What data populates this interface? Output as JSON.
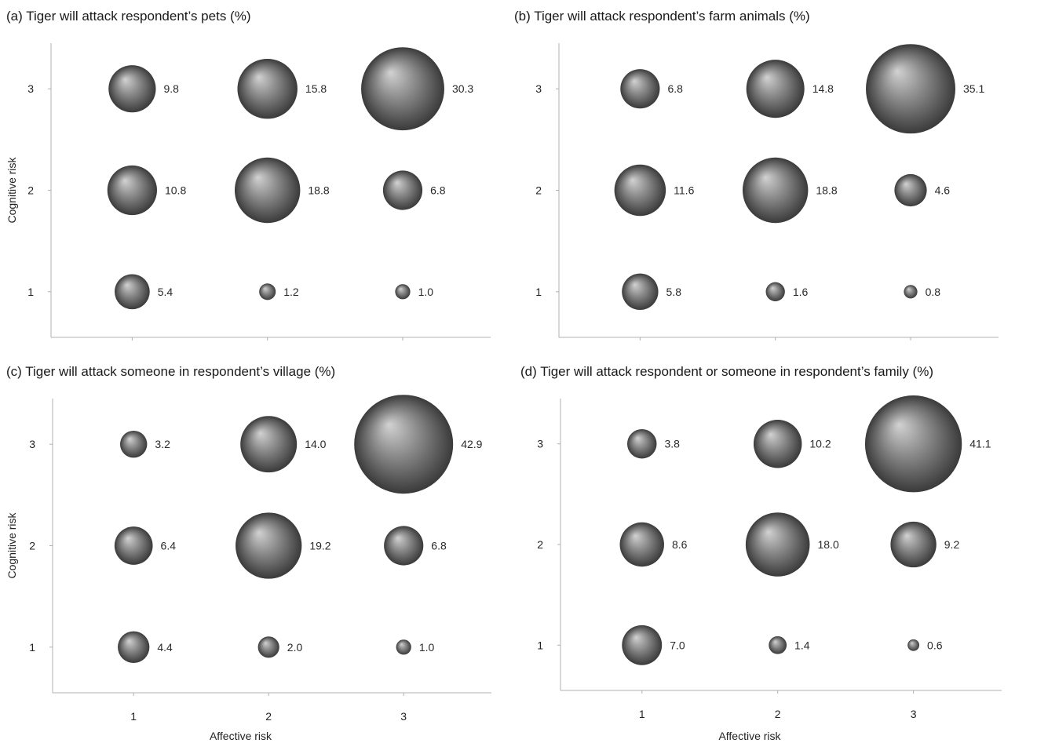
{
  "chart_data": [
    {
      "type": "bubble",
      "title": "(a)  Tiger will attack respondent’s pets (%)",
      "xlabel": "",
      "ylabel": "Cognitive risk",
      "x_ticks": [
        "1",
        "2",
        "3"
      ],
      "y_ticks": [
        "1",
        "2",
        "3"
      ],
      "xlim": [
        0.4,
        3.65
      ],
      "ylim": [
        0.55,
        3.45
      ],
      "points": [
        {
          "x": 1,
          "y": 3,
          "value": 9.8,
          "label": "9.8"
        },
        {
          "x": 2,
          "y": 3,
          "value": 15.8,
          "label": "15.8"
        },
        {
          "x": 3,
          "y": 3,
          "value": 30.3,
          "label": "30.3"
        },
        {
          "x": 1,
          "y": 2,
          "value": 10.8,
          "label": "10.8"
        },
        {
          "x": 2,
          "y": 2,
          "value": 18.8,
          "label": "18.8"
        },
        {
          "x": 3,
          "y": 2,
          "value": 6.8,
          "label": "6.8"
        },
        {
          "x": 1,
          "y": 1,
          "value": 5.4,
          "label": "5.4"
        },
        {
          "x": 2,
          "y": 1,
          "value": 1.2,
          "label": "1.2"
        },
        {
          "x": 3,
          "y": 1,
          "value": 1.0,
          "label": "1.0"
        }
      ]
    },
    {
      "type": "bubble",
      "title": "(b)  Tiger will attack respondent’s farm animals (%)",
      "xlabel": "",
      "ylabel": "",
      "x_ticks": [
        "1",
        "2",
        "3"
      ],
      "y_ticks": [
        "1",
        "2",
        "3"
      ],
      "xlim": [
        0.4,
        3.65
      ],
      "ylim": [
        0.55,
        3.45
      ],
      "points": [
        {
          "x": 1,
          "y": 3,
          "value": 6.8,
          "label": "6.8"
        },
        {
          "x": 2,
          "y": 3,
          "value": 14.8,
          "label": "14.8"
        },
        {
          "x": 3,
          "y": 3,
          "value": 35.1,
          "label": "35.1"
        },
        {
          "x": 1,
          "y": 2,
          "value": 11.6,
          "label": "11.6"
        },
        {
          "x": 2,
          "y": 2,
          "value": 18.8,
          "label": "18.8"
        },
        {
          "x": 3,
          "y": 2,
          "value": 4.6,
          "label": "4.6"
        },
        {
          "x": 1,
          "y": 1,
          "value": 5.8,
          "label": "5.8"
        },
        {
          "x": 2,
          "y": 1,
          "value": 1.6,
          "label": "1.6"
        },
        {
          "x": 3,
          "y": 1,
          "value": 0.8,
          "label": "0.8"
        }
      ]
    },
    {
      "type": "bubble",
      "title": "(c)  Tiger will attack someone in respondent’s village (%)",
      "xlabel": "Affective  risk",
      "ylabel": "Cognitive risk",
      "x_ticks": [
        "1",
        "2",
        "3"
      ],
      "y_ticks": [
        "1",
        "2",
        "3"
      ],
      "xlim": [
        0.4,
        3.65
      ],
      "ylim": [
        0.55,
        3.45
      ],
      "points": [
        {
          "x": 1,
          "y": 3,
          "value": 3.2,
          "label": "3.2"
        },
        {
          "x": 2,
          "y": 3,
          "value": 14.0,
          "label": "14.0"
        },
        {
          "x": 3,
          "y": 3,
          "value": 42.9,
          "label": "42.9"
        },
        {
          "x": 1,
          "y": 2,
          "value": 6.4,
          "label": "6.4"
        },
        {
          "x": 2,
          "y": 2,
          "value": 19.2,
          "label": "19.2"
        },
        {
          "x": 3,
          "y": 2,
          "value": 6.8,
          "label": "6.8"
        },
        {
          "x": 1,
          "y": 1,
          "value": 4.4,
          "label": "4.4"
        },
        {
          "x": 2,
          "y": 1,
          "value": 2.0,
          "label": "2.0"
        },
        {
          "x": 3,
          "y": 1,
          "value": 1.0,
          "label": "1.0"
        }
      ]
    },
    {
      "type": "bubble",
      "title": "(d)  Tiger will attack respondent or someone in respondent’s family (%)",
      "xlabel": "Affective risk",
      "ylabel": "",
      "x_ticks": [
        "1",
        "2",
        "3"
      ],
      "y_ticks": [
        "1",
        "2",
        "3"
      ],
      "xlim": [
        0.4,
        3.65
      ],
      "ylim": [
        0.55,
        3.45
      ],
      "points": [
        {
          "x": 1,
          "y": 3,
          "value": 3.8,
          "label": "3.8"
        },
        {
          "x": 2,
          "y": 3,
          "value": 10.2,
          "label": "10.2"
        },
        {
          "x": 3,
          "y": 3,
          "value": 41.1,
          "label": "41.1"
        },
        {
          "x": 1,
          "y": 2,
          "value": 8.6,
          "label": "8.6"
        },
        {
          "x": 2,
          "y": 2,
          "value": 18.0,
          "label": "18.0"
        },
        {
          "x": 3,
          "y": 2,
          "value": 9.2,
          "label": "9.2"
        },
        {
          "x": 1,
          "y": 1,
          "value": 7.0,
          "label": "7.0"
        },
        {
          "x": 2,
          "y": 1,
          "value": 1.4,
          "label": "1.4"
        },
        {
          "x": 3,
          "y": 1,
          "value": 0.6,
          "label": "0.6"
        }
      ]
    }
  ],
  "colors": {
    "bubble_highlight": "#c8c8c8",
    "bubble_mid": "#8a8a8a",
    "bubble_shadow": "#3e3e3e",
    "axis": "#b0b0b0"
  }
}
